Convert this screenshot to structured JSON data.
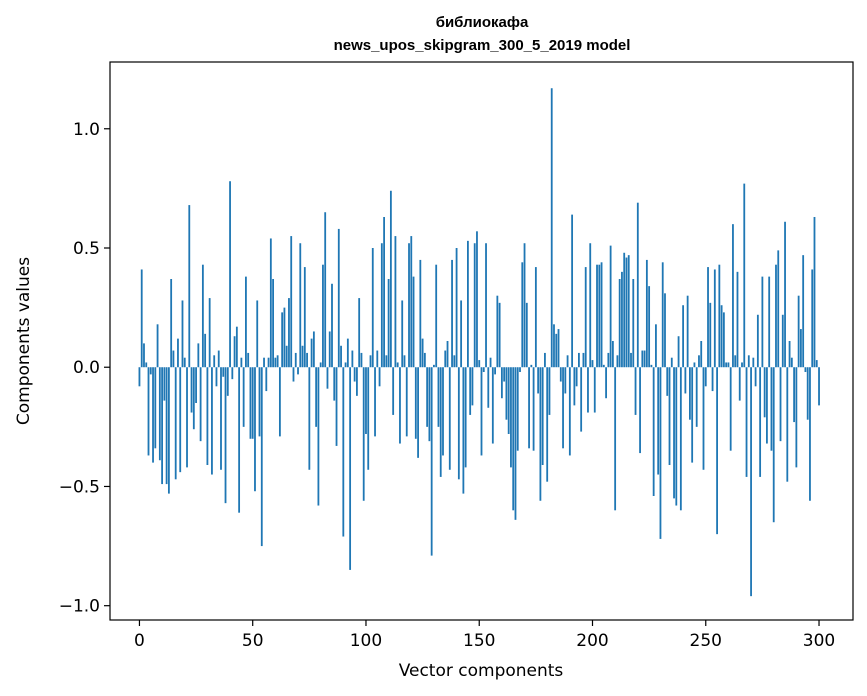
{
  "chart_data": {
    "type": "bar",
    "title": "библиокафа",
    "subtitle": "news_upos_skipgram_300_5_2019 model",
    "xlabel": "Vector components",
    "ylabel": "Components values",
    "xlim": [
      -13,
      315
    ],
    "ylim": [
      -1.06,
      1.28
    ],
    "xticks": [
      0,
      50,
      100,
      150,
      200,
      250,
      300
    ],
    "xtick_labels": [
      "0",
      "50",
      "100",
      "150",
      "200",
      "250",
      "300"
    ],
    "yticks": [
      -1.0,
      -0.5,
      0.0,
      0.5,
      1.0
    ],
    "ytick_labels": [
      "−1.0",
      "−0.5",
      "0.0",
      "0.5",
      "1.0"
    ],
    "grid": false,
    "bar_color": "#1f77b4",
    "values": [
      -0.08,
      0.41,
      0.1,
      0.02,
      -0.37,
      -0.03,
      -0.4,
      -0.34,
      0.18,
      -0.39,
      -0.49,
      -0.14,
      -0.49,
      -0.53,
      0.37,
      0.07,
      -0.47,
      0.12,
      -0.44,
      0.28,
      0.04,
      -0.42,
      0.68,
      -0.19,
      -0.26,
      -0.15,
      0.1,
      -0.31,
      0.43,
      0.14,
      -0.41,
      0.29,
      -0.45,
      0.05,
      -0.08,
      0.07,
      -0.43,
      -0.04,
      -0.57,
      -0.12,
      0.78,
      -0.05,
      0.13,
      0.17,
      -0.61,
      0.04,
      -0.25,
      0.38,
      0.06,
      -0.3,
      -0.3,
      -0.52,
      0.28,
      -0.29,
      -0.75,
      0.04,
      -0.1,
      0.04,
      0.54,
      0.37,
      0.04,
      0.05,
      -0.29,
      0.23,
      0.25,
      0.09,
      0.29,
      0.55,
      -0.06,
      0.06,
      -0.03,
      0.52,
      0.09,
      0.42,
      0.06,
      -0.43,
      0.12,
      0.15,
      -0.25,
      -0.58,
      0.02,
      0.43,
      0.65,
      -0.09,
      0.15,
      0.35,
      -0.14,
      -0.33,
      0.58,
      0.09,
      -0.71,
      0.02,
      0.12,
      -0.85,
      0.07,
      -0.06,
      -0.12,
      0.29,
      0.06,
      -0.56,
      -0.28,
      -0.43,
      0.05,
      0.5,
      -0.29,
      0.07,
      -0.08,
      0.52,
      0.63,
      0.05,
      0.37,
      0.74,
      -0.2,
      0.55,
      0.02,
      -0.32,
      0.28,
      0.05,
      -0.29,
      0.52,
      0.55,
      0.38,
      -0.3,
      -0.38,
      0.45,
      0.12,
      0.06,
      -0.25,
      -0.31,
      -0.79,
      0.01,
      0.43,
      -0.25,
      -0.46,
      -0.37,
      0.07,
      0.11,
      -0.43,
      0.45,
      0.05,
      0.5,
      -0.47,
      0.28,
      -0.53,
      -0.42,
      0.53,
      -0.2,
      -0.16,
      0.52,
      0.57,
      0.03,
      -0.37,
      -0.02,
      0.52,
      -0.17,
      0.04,
      -0.32,
      -0.03,
      0.3,
      0.27,
      -0.13,
      -0.06,
      -0.22,
      -0.28,
      -0.42,
      -0.6,
      -0.64,
      -0.35,
      -0.02,
      0.44,
      0.52,
      0.27,
      -0.34,
      0.01,
      -0.35,
      0.42,
      -0.11,
      -0.56,
      -0.41,
      0.06,
      -0.48,
      -0.2,
      1.17,
      0.18,
      0.14,
      0.16,
      -0.06,
      -0.34,
      -0.11,
      0.05,
      -0.37,
      0.64,
      -0.16,
      -0.08,
      0.06,
      -0.27,
      0.06,
      0.42,
      -0.19,
      0.52,
      0.03,
      -0.19,
      0.43,
      0.43,
      0.44,
      0.01,
      -0.13,
      0.06,
      0.51,
      0.11,
      -0.6,
      0.05,
      0.37,
      0.4,
      0.48,
      0.46,
      0.47,
      0.06,
      0.37,
      -0.2,
      0.69,
      -0.36,
      0.07,
      0.07,
      0.45,
      0.34,
      0.01,
      -0.54,
      0.18,
      -0.45,
      -0.72,
      0.44,
      0.31,
      -0.12,
      -0.41,
      0.04,
      -0.55,
      -0.58,
      0.13,
      -0.6,
      0.26,
      -0.11,
      0.3,
      -0.22,
      -0.4,
      0.02,
      -0.25,
      0.05,
      0.11,
      -0.43,
      -0.08,
      0.42,
      0.27,
      -0.1,
      0.41,
      -0.7,
      0.43,
      0.26,
      0.23,
      0.02,
      0.02,
      -0.35,
      0.6,
      0.05,
      0.4,
      -0.14,
      0.02,
      0.77,
      -0.46,
      0.05,
      -0.96,
      0.04,
      -0.08,
      0.22,
      -0.46,
      0.38,
      -0.21,
      -0.32,
      0.38,
      -0.35,
      -0.65,
      0.43,
      0.49,
      -0.31,
      0.22,
      0.61,
      -0.48,
      0.11,
      0.04,
      -0.23,
      -0.42,
      0.3,
      0.16,
      0.47,
      -0.02,
      -0.22,
      -0.56,
      0.41,
      0.63,
      0.03,
      -0.16
    ]
  }
}
